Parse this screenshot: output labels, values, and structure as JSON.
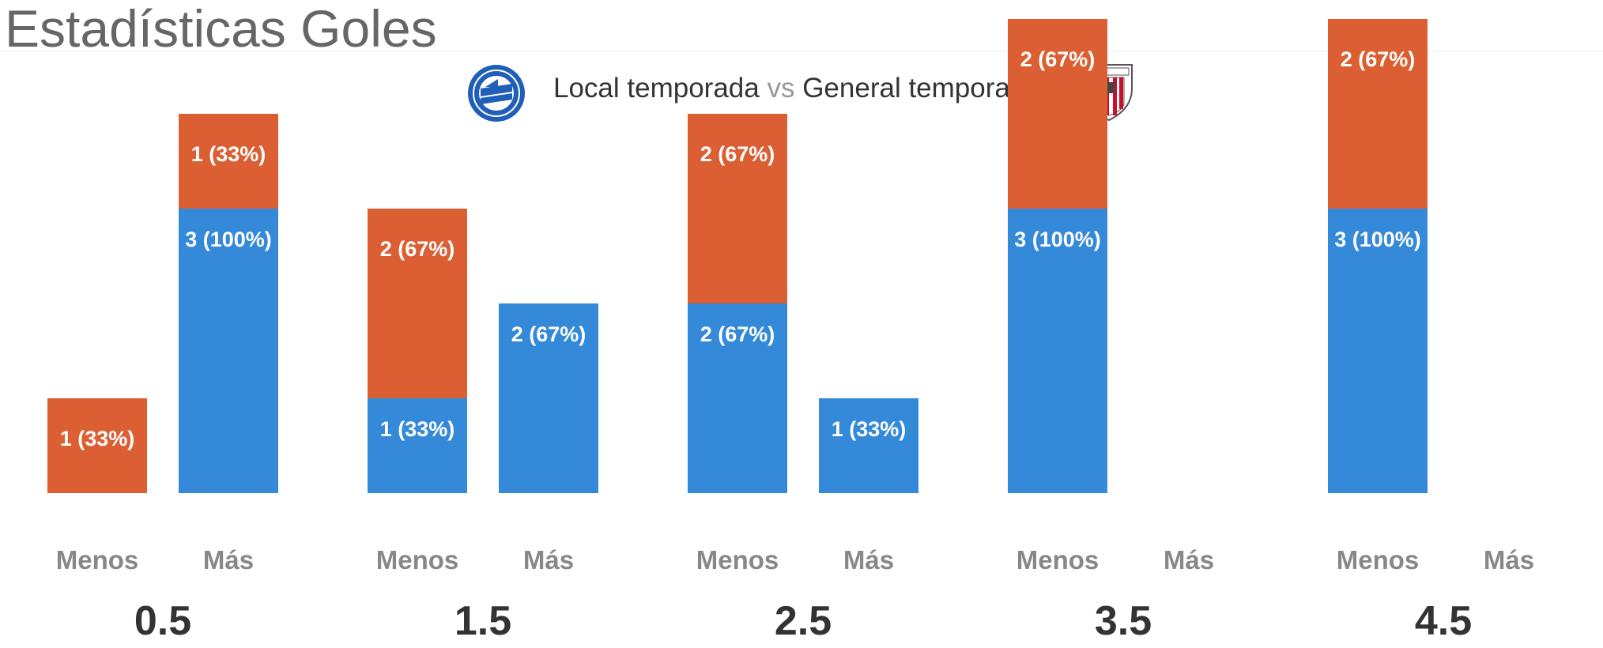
{
  "header": {
    "title": "Estadísticas Goles",
    "subtitle_left": "Local temporada",
    "subtitle_vs": "vs",
    "subtitle_right": "General temporada",
    "left_crest_icon": "deportivo-alaves-crest-icon",
    "right_crest_icon": "athletic-club-crest-icon"
  },
  "colors": {
    "local": "#db5f33",
    "general": "#3589d9",
    "category_text": "#888888",
    "group_text": "#333333"
  },
  "chart_data": {
    "type": "bar",
    "title": "Estadísticas Goles",
    "ylim": [
      0,
      3.5
    ],
    "categories": [
      "Menos",
      "Más"
    ],
    "groups": [
      "0.5",
      "1.5",
      "2.5",
      "3.5",
      "4.5"
    ],
    "series": [
      {
        "name": "General temporada",
        "color": "#3589d9",
        "values": [
          [
            0,
            3
          ],
          [
            1,
            2
          ],
          [
            2,
            1
          ],
          [
            3,
            0
          ],
          [
            3,
            0
          ]
        ],
        "labels": [
          [
            "",
            "3 (100%)"
          ],
          [
            "1 (33%)",
            "2 (67%)"
          ],
          [
            "2 (67%)",
            "1 (33%)"
          ],
          [
            "3 (100%)",
            ""
          ],
          [
            "3 (100%)",
            ""
          ]
        ]
      },
      {
        "name": "Local temporada",
        "color": "#db5f33",
        "values": [
          [
            1,
            1
          ],
          [
            2,
            0
          ],
          [
            2,
            0
          ],
          [
            2,
            0
          ],
          [
            2,
            0
          ]
        ],
        "labels": [
          [
            "1 (33%)",
            "1 (33%)"
          ],
          [
            "2 (67%)",
            ""
          ],
          [
            "2 (67%)",
            ""
          ],
          [
            "2 (67%)",
            ""
          ],
          [
            "2 (67%)",
            ""
          ]
        ]
      }
    ]
  }
}
